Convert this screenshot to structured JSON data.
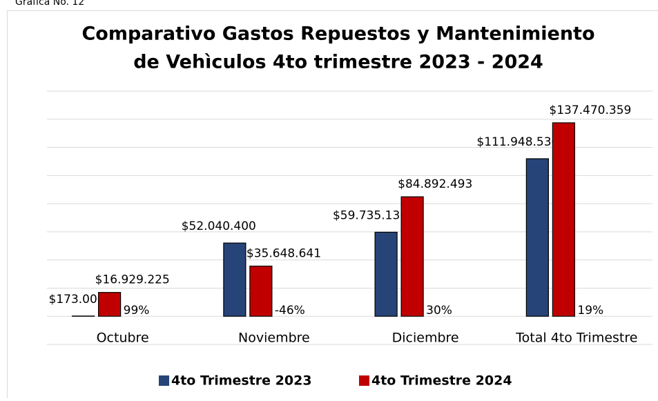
{
  "caption": "Gráfica No. 12",
  "chart_data": {
    "type": "bar",
    "title": [
      "Comparativo Gastos  Repuestos y Mantenimiento",
      "de Vehìculos 4to trimestre 2023 - 2024"
    ],
    "categories": [
      "Octubre",
      "Noviembre",
      "Diciembre",
      "Total 4to Trimestre"
    ],
    "series": [
      {
        "name": "4to  Trimestre 2023",
        "color": "#264478",
        "values": [
          173000,
          52040400,
          59735136,
          111948536
        ],
        "value_labels": [
          "$173.000",
          "$52.040.400",
          "$59.735.136",
          "$111.948.536"
        ]
      },
      {
        "name": "4to Trimestre 2024",
        "color": "#c00000",
        "values": [
          16929225,
          35648641,
          84892493,
          137470359
        ],
        "value_labels": [
          "$16.929.225",
          "$35.648.641",
          "$84.892.493",
          "$137.470.359"
        ]
      }
    ],
    "annotations": [
      "99%",
      "-46%",
      "30%",
      "19%"
    ],
    "ylim": [
      -20000000,
      160000000
    ],
    "yticks": [
      -20000000,
      0,
      20000000,
      40000000,
      60000000,
      80000000,
      100000000,
      120000000,
      140000000,
      160000000
    ],
    "grid": true,
    "legend": "bottom"
  }
}
